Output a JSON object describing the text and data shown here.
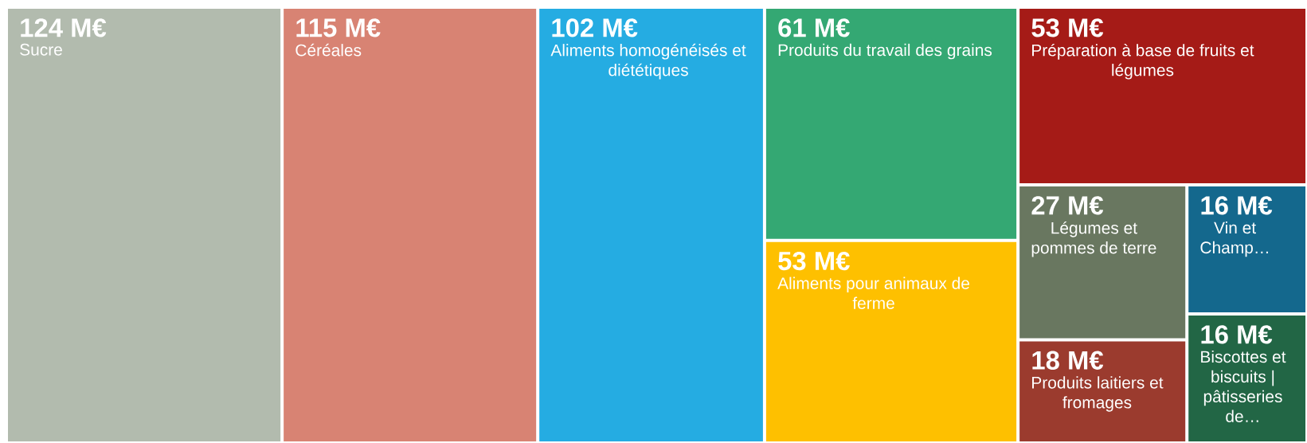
{
  "chart_data": {
    "type": "other",
    "categories": [
      "Sucre",
      "Céréales",
      "Aliments homogénéisés et diététiques",
      "Produits du travail des grains",
      "Aliments pour animaux de ferme",
      "Préparation à base de fruits et légumes",
      "Légumes et pommes de terre",
      "Produits laitiers et fromages",
      "Vin et Champ…",
      "Biscottes et biscuits | pâtisseries de…"
    ],
    "values": [
      124,
      115,
      102,
      61,
      53,
      53,
      27,
      18,
      16,
      16
    ],
    "value_labels": [
      "124 M€",
      "115 M€",
      "102 M€",
      "61 M€",
      "53 M€",
      "53 M€",
      "27 M€",
      "18 M€",
      "16 M€",
      "16 M€"
    ],
    "colors": [
      "#b2bbae",
      "#d88373",
      "#25ace2",
      "#34a873",
      "#fec000",
      "#a51b17",
      "#697760",
      "#9b3b2e",
      "#14688d",
      "#226645"
    ]
  }
}
